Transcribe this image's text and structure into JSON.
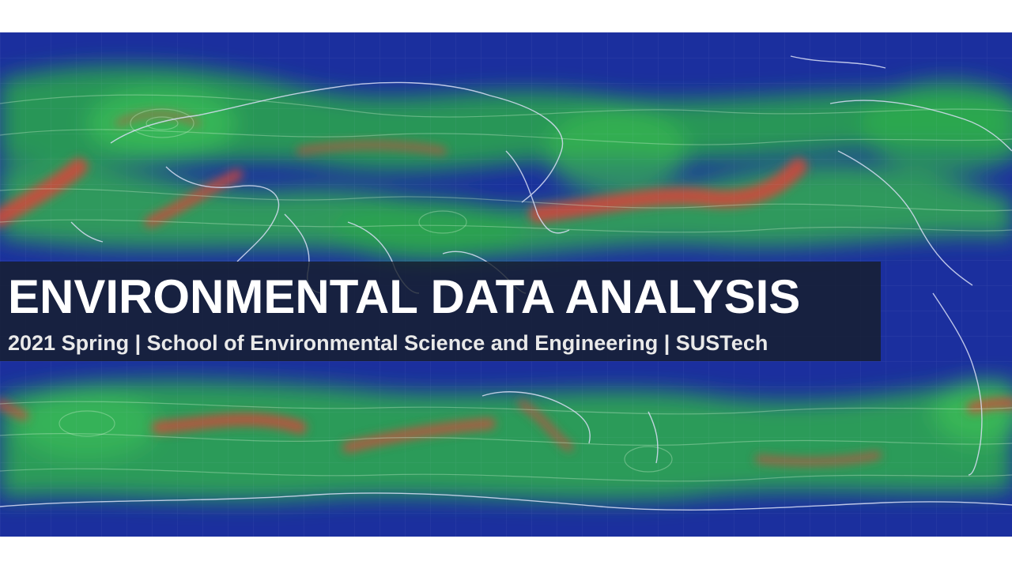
{
  "slide": {
    "title": "ENVIRONMENTAL DATA ANALYSIS",
    "subtitle": "2021 Spring | School of Environmental Science and Engineering | SUSTech"
  },
  "background": {
    "image": "global-wind-flow-map",
    "colors": {
      "ocean_low": "#1b2f9e",
      "mid": "#2aa84a",
      "high": "#6fe04a",
      "jet": "#d8453a",
      "coastline": "#d9def5"
    }
  },
  "colors": {
    "title_band": "#161e28",
    "title_text": "#ffffff",
    "subtitle_text": "#e9e9e9"
  }
}
